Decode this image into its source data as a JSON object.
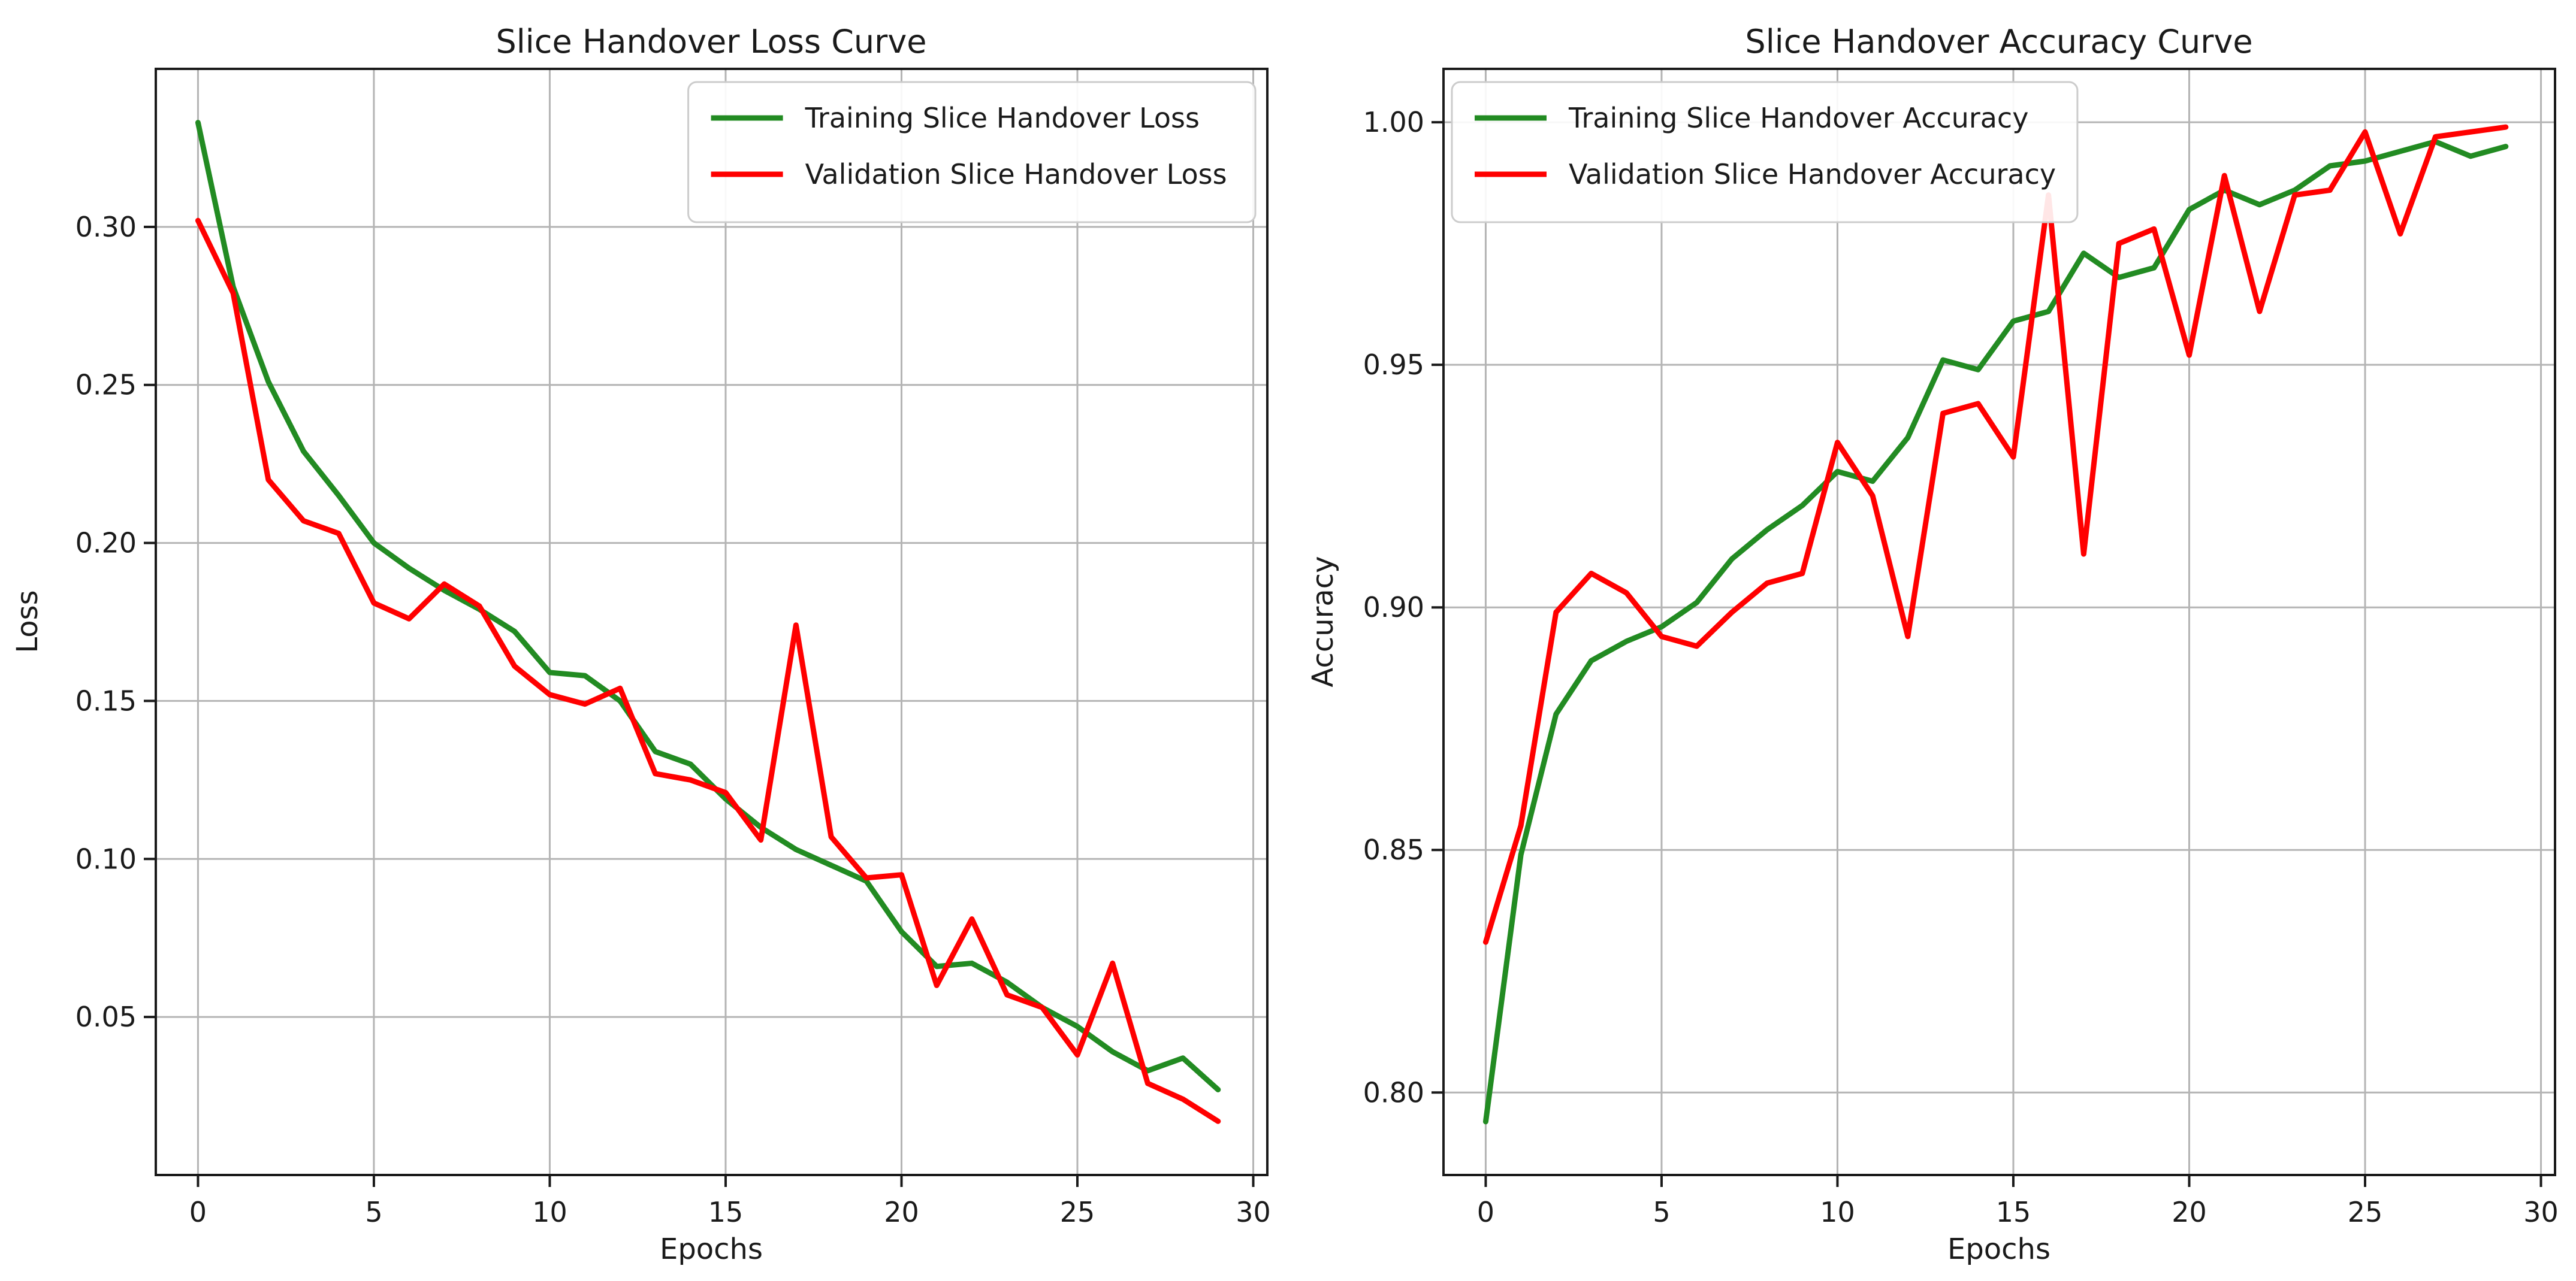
{
  "figure": {
    "background": "#ffffff",
    "grid_color": "#b4b4b4",
    "spine_color": "#1a1a1a",
    "text_color": "#1a1a1a",
    "train_color": "#228b22",
    "val_color": "#ff0000"
  },
  "chart_data": [
    {
      "type": "line",
      "title": "Slice Handover Loss Curve",
      "xlabel": "Epochs",
      "ylabel": "Loss",
      "grid": true,
      "legend_loc": "upper right",
      "xlim": [
        -1.2,
        30.4
      ],
      "ylim": [
        0.0,
        0.35
      ],
      "xticks": [
        0,
        5,
        10,
        15,
        20,
        25,
        30
      ],
      "yticks": [
        {
          "v": 0.05,
          "label": "0.05"
        },
        {
          "v": 0.1,
          "label": "0.10"
        },
        {
          "v": 0.15,
          "label": "0.15"
        },
        {
          "v": 0.2,
          "label": "0.20"
        },
        {
          "v": 0.25,
          "label": "0.25"
        },
        {
          "v": 0.3,
          "label": "0.30"
        }
      ],
      "epochs": [
        0,
        1,
        2,
        3,
        4,
        5,
        6,
        7,
        8,
        9,
        10,
        11,
        12,
        13,
        14,
        15,
        16,
        17,
        18,
        19,
        20,
        21,
        22,
        23,
        24,
        25,
        26,
        27,
        28,
        29
      ],
      "series": [
        {
          "name": "Training Slice Handover Loss",
          "color_key": "train_color",
          "values": [
            0.333,
            0.281,
            0.251,
            0.229,
            0.215,
            0.2,
            0.192,
            0.185,
            0.179,
            0.172,
            0.159,
            0.158,
            0.15,
            0.134,
            0.13,
            0.119,
            0.11,
            0.103,
            0.098,
            0.093,
            0.077,
            0.066,
            0.067,
            0.061,
            0.053,
            0.047,
            0.039,
            0.033,
            0.037,
            0.027
          ]
        },
        {
          "name": "Validation Slice Handover Loss",
          "color_key": "val_color",
          "values": [
            0.302,
            0.279,
            0.22,
            0.207,
            0.203,
            0.181,
            0.176,
            0.187,
            0.18,
            0.161,
            0.152,
            0.149,
            0.154,
            0.127,
            0.125,
            0.121,
            0.106,
            0.174,
            0.107,
            0.094,
            0.095,
            0.06,
            0.081,
            0.057,
            0.053,
            0.038,
            0.067,
            0.029,
            0.024,
            0.017
          ]
        }
      ]
    },
    {
      "type": "line",
      "title": "Slice Handover Accuracy Curve",
      "xlabel": "Epochs",
      "ylabel": "Accuracy",
      "grid": true,
      "legend_loc": "upper left",
      "xlim": [
        -1.2,
        30.4
      ],
      "ylim": [
        0.783,
        1.011
      ],
      "xticks": [
        0,
        5,
        10,
        15,
        20,
        25,
        30
      ],
      "yticks": [
        {
          "v": 0.8,
          "label": "0.80"
        },
        {
          "v": 0.85,
          "label": "0.85"
        },
        {
          "v": 0.9,
          "label": "0.90"
        },
        {
          "v": 0.95,
          "label": "0.95"
        },
        {
          "v": 1.0,
          "label": "1.00"
        }
      ],
      "epochs": [
        0,
        1,
        2,
        3,
        4,
        5,
        6,
        7,
        8,
        9,
        10,
        11,
        12,
        13,
        14,
        15,
        16,
        17,
        18,
        19,
        20,
        21,
        22,
        23,
        24,
        25,
        26,
        27,
        28,
        29
      ],
      "series": [
        {
          "name": "Training Slice Handover Accuracy",
          "color_key": "train_color",
          "values": [
            0.794,
            0.849,
            0.878,
            0.889,
            0.893,
            0.896,
            0.901,
            0.91,
            0.916,
            0.921,
            0.928,
            0.926,
            0.935,
            0.951,
            0.949,
            0.959,
            0.961,
            0.973,
            0.968,
            0.97,
            0.982,
            0.986,
            0.983,
            0.986,
            0.991,
            0.992,
            0.994,
            0.996,
            0.993,
            0.995
          ]
        },
        {
          "name": "Validation Slice Handover Accuracy",
          "color_key": "val_color",
          "values": [
            0.831,
            0.855,
            0.899,
            0.907,
            0.903,
            0.894,
            0.892,
            0.899,
            0.905,
            0.907,
            0.934,
            0.923,
            0.894,
            0.94,
            0.942,
            0.931,
            0.985,
            0.911,
            0.975,
            0.978,
            0.952,
            0.989,
            0.961,
            0.985,
            0.986,
            0.998,
            0.977,
            0.997,
            0.998,
            0.999
          ]
        }
      ]
    }
  ]
}
